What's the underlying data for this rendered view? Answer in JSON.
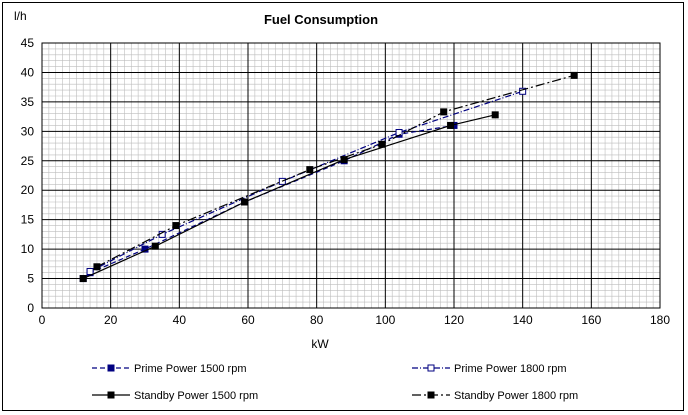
{
  "chart_data": {
    "type": "line",
    "title": "Fuel Consumption",
    "xlabel": "kW",
    "ylabel": "l/h",
    "xlim": [
      0,
      180
    ],
    "ylim": [
      0,
      45
    ],
    "x_ticks": [
      0,
      20,
      40,
      60,
      80,
      100,
      120,
      140,
      160,
      180
    ],
    "y_ticks": [
      0,
      5,
      10,
      15,
      20,
      25,
      30,
      35,
      40,
      45
    ],
    "grid": true,
    "legend_position": "bottom",
    "series": [
      {
        "name": "Prime Power  1500 rpm",
        "line_style": "dashed",
        "marker": "filled-square",
        "color": "#000080",
        "points": [
          [
            12,
            5.0
          ],
          [
            14,
            6.0
          ],
          [
            30,
            10.0
          ],
          [
            59,
            18.0
          ],
          [
            88,
            25.0
          ],
          [
            104,
            29.5
          ],
          [
            120,
            31.0
          ]
        ]
      },
      {
        "name": "Prime Power  1800 rpm",
        "line_style": "dash-dot",
        "marker": "open-square",
        "color": "#000080",
        "points": [
          [
            14,
            6.2
          ],
          [
            35,
            12.5
          ],
          [
            70,
            21.5
          ],
          [
            104,
            29.8
          ],
          [
            140,
            36.8
          ]
        ]
      },
      {
        "name": "Standby Power  1500 rpm",
        "line_style": "solid",
        "marker": "filled-square",
        "color": "#000000",
        "points": [
          [
            12,
            5.0
          ],
          [
            33,
            10.5
          ],
          [
            59,
            18.0
          ],
          [
            88,
            25.2
          ],
          [
            119,
            31.0
          ],
          [
            132,
            32.8
          ]
        ]
      },
      {
        "name": "Standby Power  1800 rpm",
        "line_style": "long-dash-dot",
        "marker": "filled-square",
        "color": "#000000",
        "points": [
          [
            16,
            7.0
          ],
          [
            39,
            14.0
          ],
          [
            78,
            23.5
          ],
          [
            99,
            27.8
          ],
          [
            117,
            33.3
          ],
          [
            155,
            39.5
          ]
        ]
      }
    ]
  }
}
